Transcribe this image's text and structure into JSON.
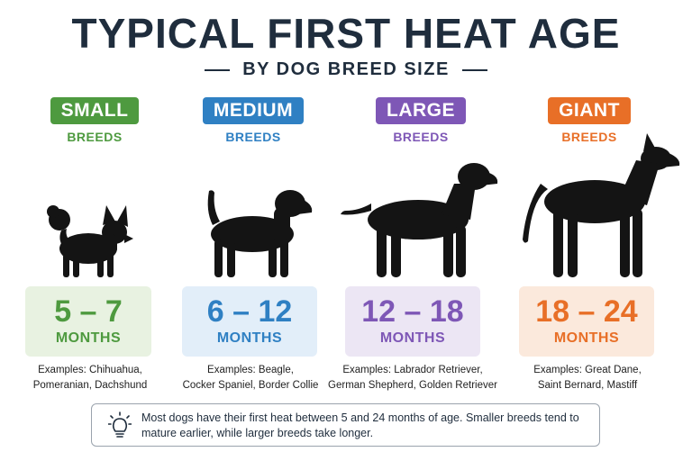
{
  "title": "TYPICAL FIRST HEAT AGE",
  "subtitle": "BY DOG BREED SIZE",
  "categories": [
    {
      "badge": "SMALL",
      "breeds_label": "BREEDS",
      "range": "5 – 7",
      "unit": "MONTHS",
      "examples_line1": "Examples: Chihuahua,",
      "examples_line2": "Pomeranian, Dachshund",
      "color": "#4e9a3f",
      "box_color": "#e8f2e1"
    },
    {
      "badge": "MEDIUM",
      "breeds_label": "BREEDS",
      "range": "6 – 12",
      "unit": "MONTHS",
      "examples_line1": "Examples: Beagle,",
      "examples_line2": "Cocker Spaniel, Border Collie",
      "color": "#2f80c3",
      "box_color": "#e2eef9"
    },
    {
      "badge": "LARGE",
      "breeds_label": "BREEDS",
      "range": "12 – 18",
      "unit": "MONTHS",
      "examples_line1": "Examples: Labrador Retriever,",
      "examples_line2": "German Shepherd, Golden Retriever",
      "color": "#7e57b6",
      "box_color": "#ece6f4"
    },
    {
      "badge": "GIANT",
      "breeds_label": "BREEDS",
      "range": "18 – 24",
      "unit": "MONTHS",
      "examples_line1": "Examples: Great Dane,",
      "examples_line2": "Saint Bernard, Mastiff",
      "color": "#e86f27",
      "box_color": "#fbe9dc"
    }
  ],
  "note": {
    "icon": "lightbulb-icon",
    "text": "Most dogs have their first heat between 5 and 24 months of age. Smaller breeds tend to mature earlier, while larger breeds take longer."
  }
}
